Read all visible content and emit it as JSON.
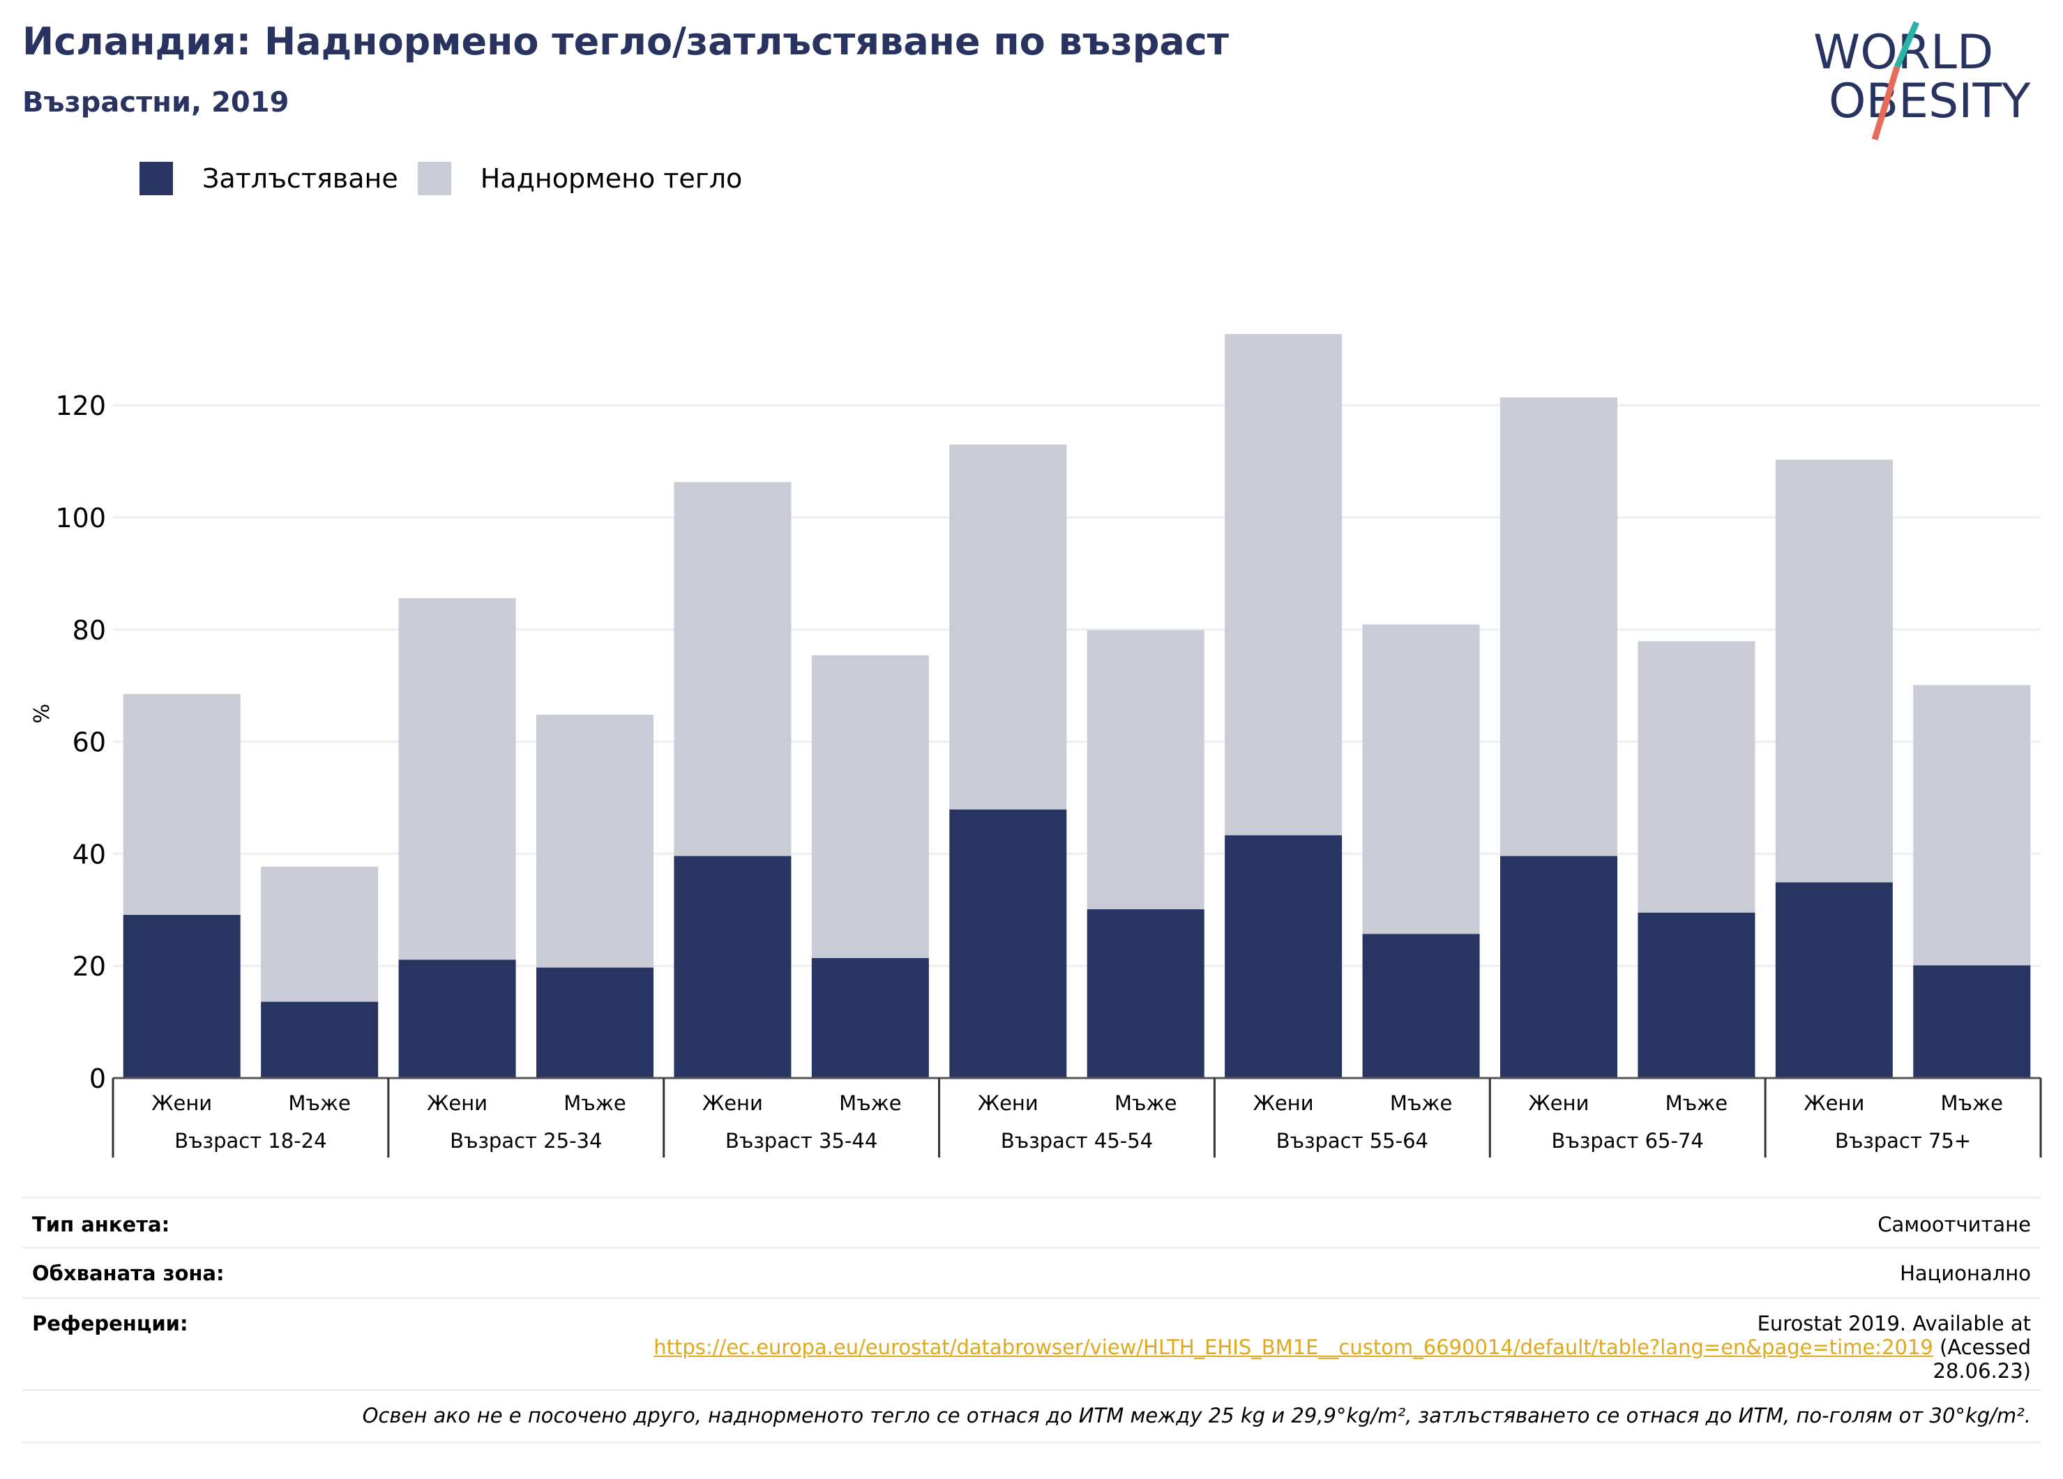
{
  "header": {
    "title": "Исландия: Наднормено тегло/затлъстяване по възраст",
    "subtitle": "Възрастни, 2019"
  },
  "logo": {
    "line1": "WORLD",
    "line2": "OBESITY"
  },
  "colors": {
    "obesity": "#283563",
    "overweight": "#c9cbd6",
    "title": "#283360",
    "link": "#e0a81c"
  },
  "chart_data": {
    "type": "bar",
    "stacked": true,
    "ylabel": "%",
    "ylim": [
      0,
      140
    ],
    "yticks": [
      0,
      20,
      40,
      60,
      80,
      100,
      120
    ],
    "grid": true,
    "legend_position": "top-left",
    "groups": [
      "Възраст 18-24",
      "Възраст 25-34",
      "Възраст 35-44",
      "Възраст 45-54",
      "Възраст 55-64",
      "Възраст 65-74",
      "Възраст 75+"
    ],
    "sexes": [
      "Жени",
      "Мъже"
    ],
    "series": [
      {
        "name": "Затлъстяване",
        "color": "#283563",
        "values": [
          29.1,
          13.6,
          21.1,
          19.7,
          39.6,
          21.4,
          47.9,
          30.1,
          43.3,
          25.7,
          39.6,
          29.5,
          34.9,
          20.1
        ]
      },
      {
        "name": "Наднормено тегло",
        "color": "#c9cbd6",
        "values": [
          39.4,
          24.1,
          64.5,
          45.1,
          66.7,
          54.0,
          65.1,
          49.8,
          89.4,
          55.2,
          81.8,
          48.4,
          75.4,
          50.0
        ]
      }
    ]
  },
  "info": {
    "survey_label": "Тип анкета:",
    "survey_value": "Самоотчитане",
    "area_label": "Обхваната зона:",
    "area_value": "Национално",
    "refs_label": "Референции:",
    "refs_line1": "Eurostat 2019. Available at",
    "refs_link": "https://ec.europa.eu/eurostat/databrowser/view/HLTH_EHIS_BM1E__custom_6690014/default/table?lang=en&page=time:2019",
    "refs_after": " (Acessed",
    "refs_line3": "28.06.23)",
    "note": "Освен ако не е посочено друго, наднорменото тегло се отнася до ИТМ между 25 kg и 29,9°kg/m², затлъстяването се отнася до ИТМ, по-голям от 30°kg/m²."
  }
}
